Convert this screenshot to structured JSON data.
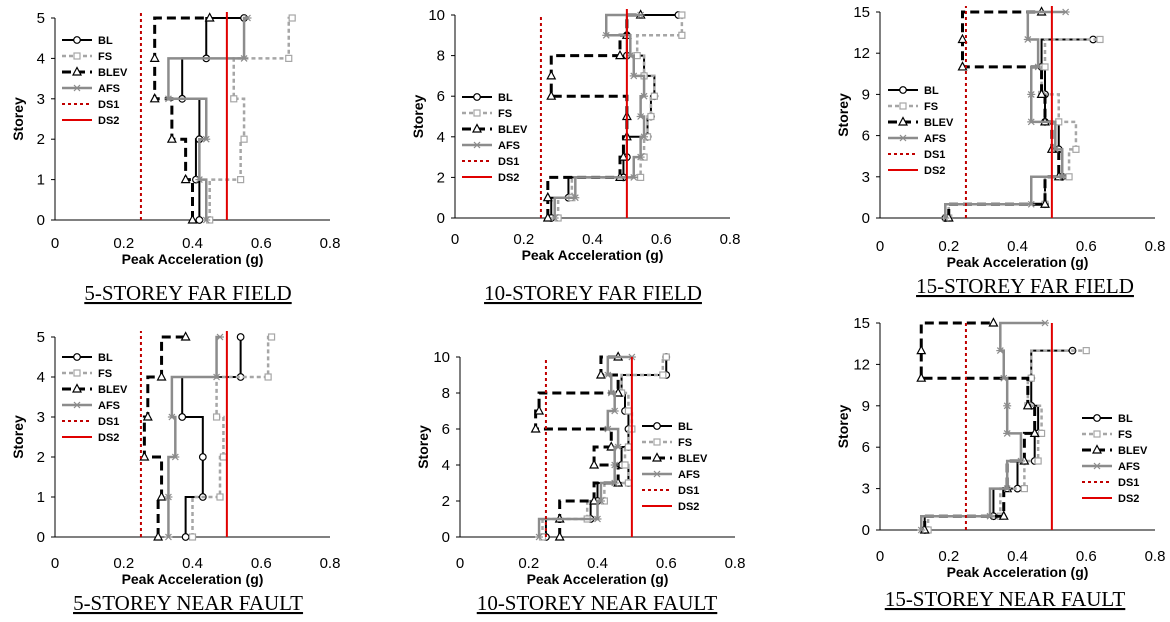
{
  "colors": {
    "BL": "#000000",
    "FS": "#a6a6a6",
    "BLEV": "#000000",
    "AFS": "#8c8c8c",
    "DS1": "#c00000",
    "DS2": "#e00000"
  },
  "legend_entries": [
    "BL",
    "FS",
    "BLEV",
    "AFS",
    "DS1",
    "DS2"
  ],
  "chart_data": [
    {
      "type": "line",
      "title": "5-STOREY FAR FIELD",
      "xlabel": "Peak Acceleration (g)",
      "ylabel": "Storey",
      "xlim": [
        0,
        0.8
      ],
      "ylim": [
        0,
        5
      ],
      "xticks": [
        "0",
        "0.2",
        "0.4",
        "0.6",
        "0.8"
      ],
      "yticks": [
        "0",
        "1",
        "2",
        "3",
        "4",
        "5"
      ],
      "legend_position": "left",
      "series": [
        {
          "name": "BL",
          "x": [
            0.42,
            0.41,
            0.42,
            0.37,
            0.44,
            0.55
          ],
          "y": [
            0,
            1,
            2,
            3,
            4,
            5
          ]
        },
        {
          "name": "FS",
          "x": [
            0.45,
            0.54,
            0.55,
            0.52,
            0.68,
            0.69
          ],
          "y": [
            0,
            1,
            2,
            3,
            4,
            5
          ]
        },
        {
          "name": "BLEV",
          "x": [
            0.4,
            0.38,
            0.34,
            0.29,
            0.29,
            0.45
          ],
          "y": [
            0,
            1,
            2,
            3,
            4,
            5
          ]
        },
        {
          "name": "AFS",
          "x": [
            0.44,
            0.42,
            0.44,
            0.33,
            0.55,
            0.56
          ],
          "y": [
            0,
            1,
            2,
            3,
            4,
            5
          ]
        },
        {
          "name": "DS1",
          "x": [
            0.25,
            0.25
          ],
          "y": [
            0,
            5.2
          ]
        },
        {
          "name": "DS2",
          "x": [
            0.5,
            0.5
          ],
          "y": [
            0,
            5.2
          ]
        }
      ]
    },
    {
      "type": "line",
      "title": "10-STOREY FAR FIELD",
      "xlabel": "Peak Acceleration (g)",
      "ylabel": "Storey",
      "xlim": [
        0,
        0.8
      ],
      "ylim": [
        0,
        10
      ],
      "xticks": [
        "0",
        "0.2",
        "0.4",
        "0.6",
        "0.8"
      ],
      "yticks": [
        "0",
        "2",
        "4",
        "6",
        "8",
        "10"
      ],
      "legend_position": "left",
      "series": [
        {
          "name": "BL",
          "x": [
            0.28,
            0.33,
            0.49,
            0.5,
            0.56,
            0.57,
            0.58,
            0.55,
            0.5,
            0.5,
            0.65
          ],
          "y": [
            0,
            1,
            2,
            3,
            4,
            5,
            6,
            7,
            8,
            9,
            10
          ]
        },
        {
          "name": "FS",
          "x": [
            0.3,
            0.34,
            0.54,
            0.55,
            0.56,
            0.57,
            0.58,
            0.55,
            0.53,
            0.66,
            0.66
          ],
          "y": [
            0,
            1,
            2,
            3,
            4,
            5,
            6,
            7,
            8,
            9,
            10
          ]
        },
        {
          "name": "BLEV",
          "x": [
            0.27,
            0.27,
            0.48,
            0.49,
            0.5,
            0.5,
            0.28,
            0.28,
            0.48,
            0.5,
            0.54
          ],
          "y": [
            0,
            1,
            2,
            3,
            4,
            5,
            6,
            7,
            8,
            9,
            10
          ]
        },
        {
          "name": "AFS",
          "x": [
            0.29,
            0.35,
            0.52,
            0.54,
            0.55,
            0.54,
            0.55,
            0.52,
            0.51,
            0.44,
            0.54
          ],
          "y": [
            0,
            1,
            2,
            3,
            4,
            5,
            6,
            7,
            8,
            9,
            10
          ]
        },
        {
          "name": "DS1",
          "x": [
            0.25,
            0.25
          ],
          "y": [
            0,
            10
          ]
        },
        {
          "name": "DS2",
          "x": [
            0.5,
            0.5
          ],
          "y": [
            0,
            10.3
          ]
        }
      ]
    },
    {
      "type": "line",
      "title": "15-STOREY FAR FIELD",
      "xlabel": "Peak Acceleration (g)",
      "ylabel": "Storey",
      "xlim": [
        0,
        0.8
      ],
      "ylim": [
        0,
        15
      ],
      "xticks": [
        "0",
        "0.2",
        "0.4",
        "0.6",
        "0.8"
      ],
      "yticks": [
        "0",
        "3",
        "6",
        "9",
        "12",
        "15"
      ],
      "legend_position": "left",
      "series": [
        {
          "name": "BL",
          "x": [
            0.19,
            0.48,
            0.53,
            0.52,
            0.48,
            0.48,
            0.47,
            0.62
          ],
          "y": [
            0,
            1,
            3,
            5,
            7,
            9,
            11,
            13
          ]
        },
        {
          "name": "FS",
          "x": [
            0.2,
            0.48,
            0.55,
            0.57,
            0.52,
            0.47,
            0.48,
            0.64
          ],
          "y": [
            0,
            1,
            3,
            5,
            7,
            9,
            11,
            13
          ]
        },
        {
          "name": "BLEV",
          "x": [
            0.2,
            0.48,
            0.52,
            0.5,
            0.48,
            0.47,
            0.24,
            0.24,
            0.47
          ],
          "y": [
            0,
            1,
            3,
            5,
            7,
            9,
            11,
            13,
            15
          ]
        },
        {
          "name": "AFS",
          "x": [
            0.19,
            0.44,
            0.53,
            0.51,
            0.44,
            0.44,
            0.46,
            0.43,
            0.54
          ],
          "y": [
            0,
            1,
            3,
            5,
            7,
            9,
            11,
            13,
            15
          ]
        },
        {
          "name": "DS1",
          "x": [
            0.25,
            0.25
          ],
          "y": [
            0,
            15.5
          ]
        },
        {
          "name": "DS2",
          "x": [
            0.5,
            0.5
          ],
          "y": [
            0,
            15.5
          ]
        }
      ]
    },
    {
      "type": "line",
      "title": "5-STOREY NEAR FAULT",
      "xlabel": "Peak Acceleration (g)",
      "ylabel": "Storey",
      "xlim": [
        0,
        0.8
      ],
      "ylim": [
        0,
        5
      ],
      "xticks": [
        "0",
        "0.2",
        "0.4",
        "0.6",
        "0.8"
      ],
      "yticks": [
        "0",
        "1",
        "2",
        "3",
        "4",
        "5"
      ],
      "legend_position": "left",
      "series": [
        {
          "name": "BL",
          "x": [
            0.38,
            0.43,
            0.43,
            0.37,
            0.54,
            0.54
          ],
          "y": [
            0,
            1,
            2,
            3,
            4,
            5
          ]
        },
        {
          "name": "FS",
          "x": [
            0.4,
            0.48,
            0.49,
            0.47,
            0.62,
            0.63
          ],
          "y": [
            0,
            1,
            2,
            3,
            4,
            5
          ]
        },
        {
          "name": "BLEV",
          "x": [
            0.3,
            0.31,
            0.26,
            0.27,
            0.31,
            0.38
          ],
          "y": [
            0,
            1,
            2,
            3,
            4,
            5
          ]
        },
        {
          "name": "AFS",
          "x": [
            0.33,
            0.33,
            0.35,
            0.34,
            0.47,
            0.48
          ],
          "y": [
            0,
            1,
            2,
            3,
            4,
            5
          ]
        },
        {
          "name": "DS1",
          "x": [
            0.25,
            0.25
          ],
          "y": [
            0,
            5.2
          ]
        },
        {
          "name": "DS2",
          "x": [
            0.5,
            0.5
          ],
          "y": [
            0,
            5.2
          ]
        }
      ]
    },
    {
      "type": "line",
      "title": "10-STOREY NEAR FAULT",
      "xlabel": "Peak Acceleration (g)",
      "ylabel": "Storey",
      "xlim": [
        0,
        0.8
      ],
      "ylim": [
        0,
        10
      ],
      "xticks": [
        "0",
        "0.2",
        "0.4",
        "0.6",
        "0.8"
      ],
      "yticks": [
        "0",
        "2",
        "4",
        "6",
        "8",
        "10"
      ],
      "legend_position": "right",
      "series": [
        {
          "name": "BL",
          "x": [
            0.25,
            0.38,
            0.4,
            0.49,
            0.47,
            0.49,
            0.49,
            0.48,
            0.47,
            0.6,
            0.6
          ],
          "y": [
            0,
            1,
            2,
            3,
            4,
            5,
            6,
            7,
            8,
            9,
            10
          ]
        },
        {
          "name": "FS",
          "x": [
            0.24,
            0.37,
            0.42,
            0.49,
            0.48,
            0.49,
            0.5,
            0.49,
            0.47,
            0.59,
            0.6
          ],
          "y": [
            0,
            1,
            2,
            3,
            4,
            5,
            6,
            7,
            8,
            9,
            10
          ]
        },
        {
          "name": "BLEV",
          "x": [
            0.29,
            0.29,
            0.39,
            0.46,
            0.39,
            0.44,
            0.22,
            0.23,
            0.46,
            0.41,
            0.46
          ],
          "y": [
            0,
            1,
            2,
            3,
            4,
            5,
            6,
            7,
            8,
            9,
            10
          ]
        },
        {
          "name": "AFS",
          "x": [
            0.23,
            0.4,
            0.41,
            0.45,
            0.45,
            0.46,
            0.43,
            0.45,
            0.44,
            0.43,
            0.5
          ],
          "y": [
            0,
            1,
            2,
            3,
            4,
            5,
            6,
            7,
            8,
            9,
            10
          ]
        },
        {
          "name": "DS1",
          "x": [
            0.25,
            0.25
          ],
          "y": [
            0,
            10
          ]
        },
        {
          "name": "DS2",
          "x": [
            0.5,
            0.5
          ],
          "y": [
            0,
            10
          ]
        }
      ]
    },
    {
      "type": "line",
      "title": "15-STOREY NEAR FAULT",
      "xlabel": "Peak Acceleration (g)",
      "ylabel": "Storey",
      "xlim": [
        0,
        0.8
      ],
      "ylim": [
        0,
        15
      ],
      "xticks": [
        "0",
        "0.2",
        "0.4",
        "0.6",
        "0.8"
      ],
      "yticks": [
        "0",
        "3",
        "6",
        "9",
        "12",
        "15"
      ],
      "legend_position": "right",
      "series": [
        {
          "name": "BL",
          "x": [
            0.13,
            0.33,
            0.4,
            0.45,
            0.46,
            0.44,
            0.44,
            0.56
          ],
          "y": [
            0,
            1,
            3,
            5,
            7,
            9,
            11,
            13
          ]
        },
        {
          "name": "FS",
          "x": [
            0.14,
            0.35,
            0.42,
            0.46,
            0.47,
            0.43,
            0.44,
            0.6
          ],
          "y": [
            0,
            1,
            3,
            5,
            7,
            9,
            11,
            13
          ]
        },
        {
          "name": "BLEV",
          "x": [
            0.13,
            0.36,
            0.37,
            0.42,
            0.45,
            0.43,
            0.12,
            0.12,
            0.33
          ],
          "y": [
            0,
            1,
            3,
            5,
            7,
            9,
            11,
            13,
            15
          ]
        },
        {
          "name": "AFS",
          "x": [
            0.12,
            0.32,
            0.37,
            0.41,
            0.37,
            0.37,
            0.36,
            0.35,
            0.48
          ],
          "y": [
            0,
            1,
            3,
            5,
            7,
            9,
            11,
            13,
            15
          ]
        },
        {
          "name": "DS1",
          "x": [
            0.25,
            0.25
          ],
          "y": [
            0,
            15
          ]
        },
        {
          "name": "DS2",
          "x": [
            0.5,
            0.5
          ],
          "y": [
            0,
            15
          ]
        }
      ]
    }
  ]
}
